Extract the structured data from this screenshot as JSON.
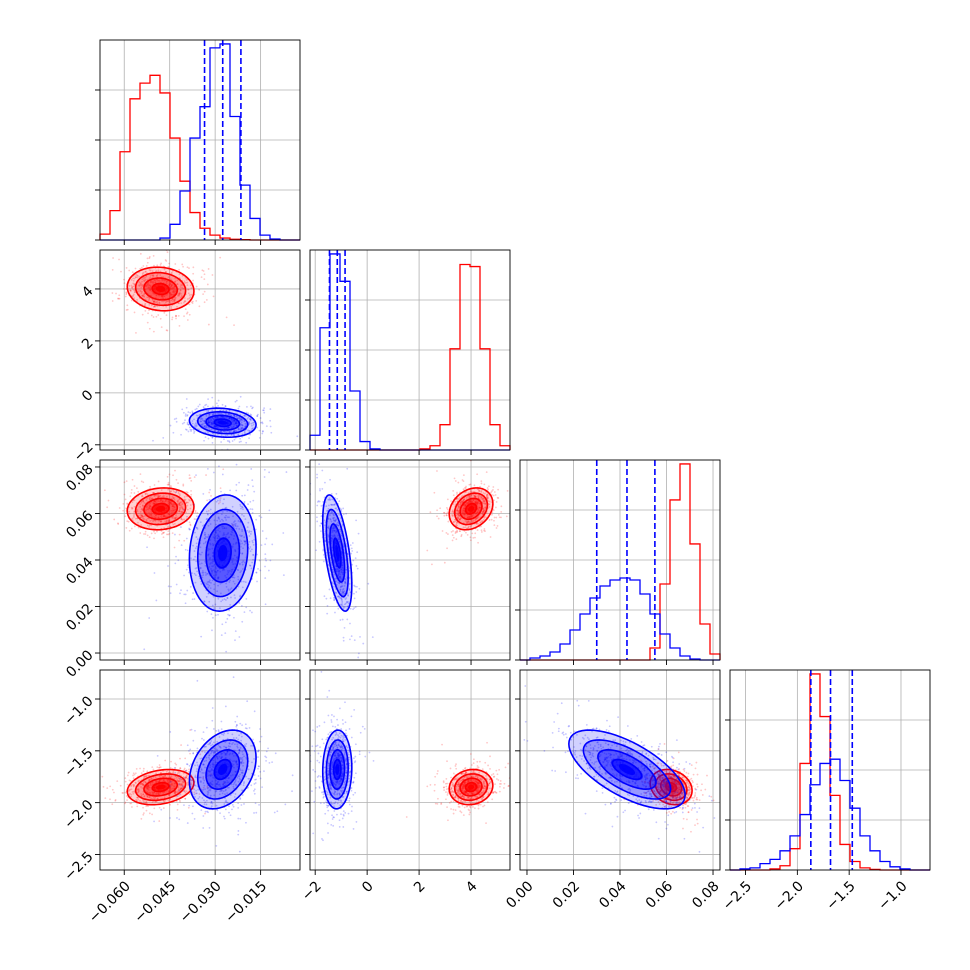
{
  "chart_data": {
    "type": "corner",
    "title": "",
    "grid": true,
    "colors": {
      "red": "#ff0000",
      "blue": "#0000ff"
    },
    "parameters": [
      {
        "range": [
          -0.068,
          -0.002
        ],
        "ticks": [
          "−0.060",
          "−0.045",
          "−0.030",
          "−0.015"
        ],
        "tick_values": [
          -0.06,
          -0.045,
          -0.03,
          -0.015
        ]
      },
      {
        "range": [
          -2.2,
          5.5
        ],
        "ticks": [
          "−2",
          "0",
          "2",
          "4"
        ],
        "tick_values": [
          -2,
          0,
          2,
          4
        ]
      },
      {
        "range": [
          -0.003,
          0.083
        ],
        "ticks": [
          "0.00",
          "0.02",
          "0.04",
          "0.06",
          "0.08"
        ],
        "tick_values": [
          0.0,
          0.02,
          0.04,
          0.06,
          0.08
        ]
      },
      {
        "range": [
          -2.65,
          -0.72
        ],
        "ticks": [
          "−2.5",
          "−2.0",
          "−1.5",
          "−1.0"
        ],
        "tick_values": [
          -2.5,
          -2.0,
          -1.5,
          -1.0
        ]
      }
    ],
    "series": [
      {
        "color": "#ff0000",
        "means": [
          -0.048,
          4.0,
          0.062,
          -1.85
        ],
        "sds": [
          0.0055,
          0.42,
          0.0045,
          0.085
        ],
        "correlations": {
          "1-0": -0.1,
          "2-0": 0.1,
          "2-1": 0.25,
          "3-0": 0.25,
          "3-1": 0.1,
          "3-2": -0.2
        }
      },
      {
        "color": "#0000ff",
        "means": [
          -0.0275,
          -1.15,
          0.043,
          -1.68
        ],
        "sds": [
          0.0055,
          0.28,
          0.0125,
          0.19
        ],
        "correlations": {
          "1-0": -0.15,
          "2-0": 0.1,
          "2-1": -0.55,
          "3-0": 0.3,
          "3-1": 0.05,
          "3-2": -0.65
        }
      }
    ],
    "diagonal_histograms": [
      {
        "bin_edges": [
          -0.068,
          -0.0647,
          -0.0614,
          -0.0581,
          -0.0548,
          -0.0515,
          -0.0482,
          -0.0449,
          -0.0416,
          -0.0383,
          -0.035,
          -0.0317,
          -0.0284,
          -0.0251,
          -0.0218,
          -0.0185,
          -0.0152,
          -0.0119,
          -0.0086,
          -0.0053,
          -0.002
        ],
        "red": [
          0.03,
          0.15,
          0.45,
          0.72,
          0.8,
          0.84,
          0.75,
          0.52,
          0.3,
          0.14,
          0.06,
          0.025,
          0.01,
          0.004,
          0.002,
          0,
          0,
          0,
          0,
          0
        ],
        "blue": [
          0,
          0,
          0,
          0,
          0,
          0,
          0.01,
          0.08,
          0.25,
          0.52,
          0.68,
          0.98,
          1.0,
          0.63,
          0.28,
          0.11,
          0.025,
          0.005,
          0,
          0
        ],
        "quantile_lines": [
          -0.0335,
          -0.0275,
          -0.0215
        ]
      },
      {
        "bin_edges": [
          -2.2,
          -1.815,
          -1.43,
          -1.045,
          -0.66,
          -0.275,
          0.11,
          0.495,
          0.88,
          1.265,
          1.65,
          2.035,
          2.42,
          2.805,
          3.19,
          3.575,
          3.96,
          4.345,
          4.73,
          5.115,
          5.5
        ],
        "red": [
          0,
          0,
          0,
          0,
          0,
          0,
          0,
          0,
          0,
          0,
          0,
          0.005,
          0.02,
          0.12,
          0.48,
          0.88,
          0.87,
          0.48,
          0.12,
          0.02
        ],
        "blue": [
          0.07,
          0.58,
          0.93,
          0.8,
          0.28,
          0.04,
          0.005,
          0,
          0,
          0,
          0,
          0,
          0,
          0,
          0,
          0,
          0,
          0,
          0,
          0
        ],
        "quantile_lines": [
          -1.45,
          -1.15,
          -0.85
        ]
      },
      {
        "bin_edges": [
          -0.003,
          0.0013,
          0.0056,
          0.0099,
          0.0142,
          0.0185,
          0.0228,
          0.0271,
          0.0314,
          0.0357,
          0.04,
          0.0443,
          0.0486,
          0.0529,
          0.0572,
          0.0615,
          0.0658,
          0.0701,
          0.0744,
          0.0787,
          0.083
        ],
        "red": [
          0,
          0,
          0,
          0,
          0,
          0,
          0,
          0,
          0,
          0,
          0,
          0,
          0,
          0.06,
          0.38,
          0.8,
          0.98,
          0.58,
          0.18,
          0.03
        ],
        "blue": [
          0,
          0.01,
          0.02,
          0.04,
          0.08,
          0.15,
          0.23,
          0.31,
          0.37,
          0.4,
          0.41,
          0.4,
          0.33,
          0.23,
          0.13,
          0.06,
          0.02,
          0.005,
          0,
          0
        ],
        "quantile_lines": [
          0.03,
          0.043,
          0.055
        ]
      },
      {
        "bin_edges": [
          -2.65,
          -2.5535,
          -2.457,
          -2.3605,
          -2.264,
          -2.1675,
          -2.071,
          -1.9745,
          -1.878,
          -1.7815,
          -1.685,
          -1.5885,
          -1.492,
          -1.3955,
          -1.299,
          -1.2025,
          -1.106,
          -1.0095,
          -0.913,
          -0.8165,
          -0.72
        ],
        "red": [
          0,
          0,
          0,
          0,
          0.005,
          0.02,
          0.1,
          0.5,
          0.92,
          0.72,
          0.35,
          0.12,
          0.04,
          0.01,
          0.003,
          0,
          0,
          0,
          0,
          0
        ],
        "blue": [
          0,
          0.005,
          0.01,
          0.03,
          0.05,
          0.09,
          0.16,
          0.26,
          0.4,
          0.5,
          0.52,
          0.42,
          0.29,
          0.16,
          0.09,
          0.04,
          0.015,
          0.005,
          0,
          0
        ],
        "quantile_lines": [
          -1.87,
          -1.68,
          -1.47
        ]
      }
    ]
  }
}
